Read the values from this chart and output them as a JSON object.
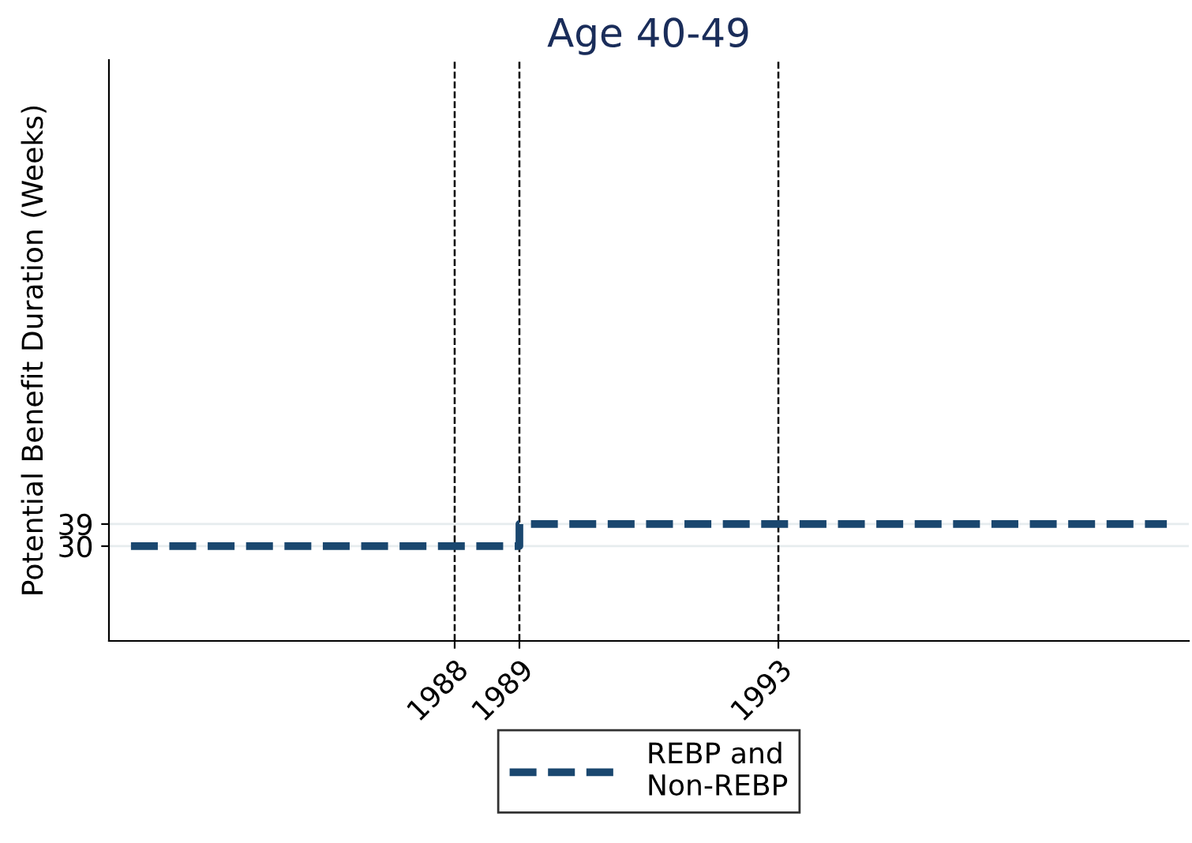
{
  "chart_data": {
    "type": "step",
    "title": "Age 40-49",
    "ylabel": "Potential Benefit Duration (Weeks)",
    "series": [
      {
        "name": "REBP and\nNon-REBP",
        "color": "#1a476f",
        "x": [
          1983,
          1989,
          1999
        ],
        "values": [
          30,
          39,
          39
        ]
      }
    ],
    "xlim": [
      1982.66,
      1999.34
    ],
    "xticks": [
      1988,
      1989,
      1993
    ],
    "ylim": [
      -8.6,
      228
    ],
    "yticks": [
      30,
      39
    ],
    "ref_lines": [
      {
        "axis": "x",
        "value": 1988,
        "color": "#000000",
        "line_style": "dashed"
      },
      {
        "axis": "x",
        "value": 1989,
        "color": "#000000",
        "line_style": "dashed"
      },
      {
        "axis": "x",
        "value": 1993,
        "color": "#000000",
        "line_style": "dashed"
      }
    ],
    "grid": "y",
    "legend": "bottom",
    "line_style": "dashed",
    "marker": "none"
  }
}
